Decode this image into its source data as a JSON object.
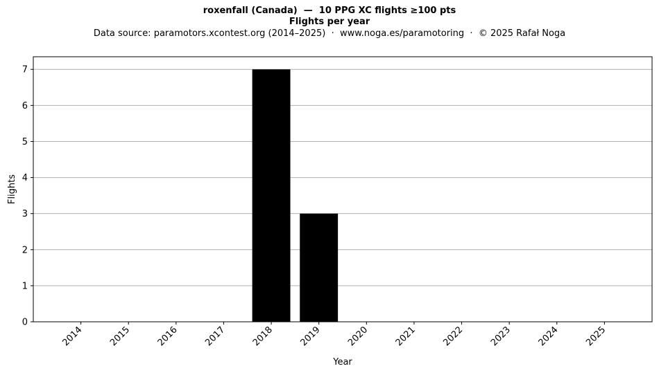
{
  "chart_data": {
    "type": "bar",
    "title": "roxenfall (Canada)  —  10 PPG XC flights ≥100 pts",
    "subtitle": "Flights per year",
    "source_note": "Data source: paramotors.xcontest.org (2014–2025)  ·  www.noga.es/paramotoring  ·  © 2025 Rafał Noga",
    "xlabel": "Year",
    "ylabel": "Flights",
    "categories": [
      "2014",
      "2015",
      "2016",
      "2017",
      "2018",
      "2019",
      "2020",
      "2021",
      "2022",
      "2023",
      "2024",
      "2025"
    ],
    "values": [
      0,
      0,
      0,
      0,
      7,
      3,
      0,
      0,
      0,
      0,
      0,
      0
    ],
    "ylim": [
      0,
      7.35
    ],
    "yticks": [
      0,
      1,
      2,
      3,
      4,
      5,
      6,
      7
    ],
    "grid": "horizontal",
    "bar_color": "#000000",
    "grid_color": "#b0b0b0"
  }
}
